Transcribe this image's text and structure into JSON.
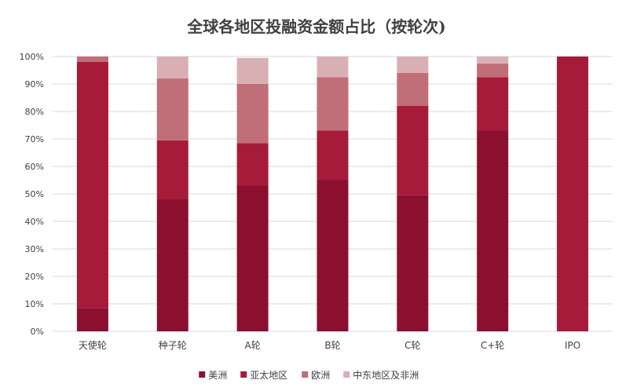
{
  "chart_data": {
    "type": "bar",
    "stacked": true,
    "title": "全球各地区投融资金额占比（按轮次)",
    "xlabel": "",
    "ylabel": "",
    "ylim": [
      0,
      100
    ],
    "yticks": [
      "0%",
      "10%",
      "20%",
      "30%",
      "40%",
      "50%",
      "60%",
      "70%",
      "80%",
      "90%",
      "100%"
    ],
    "grid": true,
    "legend_position": "bottom",
    "categories": [
      "天使轮",
      "种子轮",
      "A轮",
      "B轮",
      "C轮",
      "C+轮",
      "IPO"
    ],
    "series": [
      {
        "name": "美洲",
        "color": "#8b1030",
        "values": [
          8.5,
          48,
          53,
          55,
          49.5,
          73,
          0
        ]
      },
      {
        "name": "亚太地区",
        "color": "#a61b39",
        "values": [
          89.5,
          21.5,
          15.5,
          18,
          32.5,
          19.5,
          100
        ]
      },
      {
        "name": "欧洲",
        "color": "#c06e78",
        "values": [
          2,
          22.5,
          21.5,
          19.5,
          12,
          5,
          0
        ]
      },
      {
        "name": "中东地区及非洲",
        "color": "#d8b0b3",
        "values": [
          0,
          8,
          9.5,
          7.5,
          6,
          2.5,
          0
        ]
      }
    ]
  }
}
